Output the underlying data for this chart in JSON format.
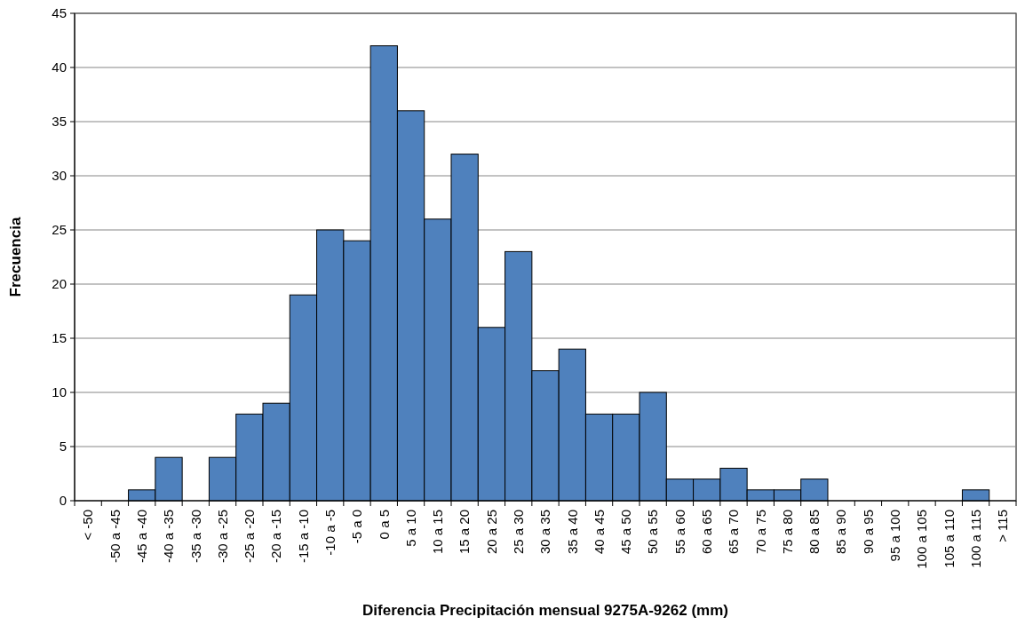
{
  "chart_data": {
    "type": "bar",
    "xlabel": "Diferencia Precipitación mensual 9275A-9262 (mm)",
    "ylabel": "Frecuencia",
    "categories": [
      "< -50",
      "-50 a -45",
      "-45 a -40",
      "-40 a -35",
      "-35 a -30",
      "-30 a -25",
      "-25 a -20",
      "-20 a -15",
      "-15 a -10",
      "-10 a -5",
      "-5 a 0",
      "0 a 5",
      "5 a 10",
      "10 a 15",
      "15 a 20",
      "20 a 25",
      "25 a 30",
      "30 a 35",
      "35 a 40",
      "40 a 45",
      "45 a 50",
      "50 a 55",
      "55 a 60",
      "60 a 65",
      "65 a 70",
      "70 a 75",
      "75 a 80",
      "80 a 85",
      "85 a 90",
      "90 a 95",
      "95 a 100",
      "100 a 105",
      "105 a 110",
      "100 a 115",
      "> 115"
    ],
    "values": [
      0,
      0,
      1,
      4,
      0,
      4,
      8,
      9,
      19,
      25,
      24,
      42,
      36,
      26,
      32,
      16,
      23,
      12,
      14,
      8,
      8,
      10,
      2,
      2,
      3,
      1,
      1,
      2,
      0,
      0,
      0,
      0,
      0,
      1,
      0
    ],
    "color": "#4f81bd",
    "ylim": [
      0,
      45
    ],
    "yticks": [
      0,
      5,
      10,
      15,
      20,
      25,
      30,
      35,
      40,
      45
    ],
    "grid": "y"
  }
}
